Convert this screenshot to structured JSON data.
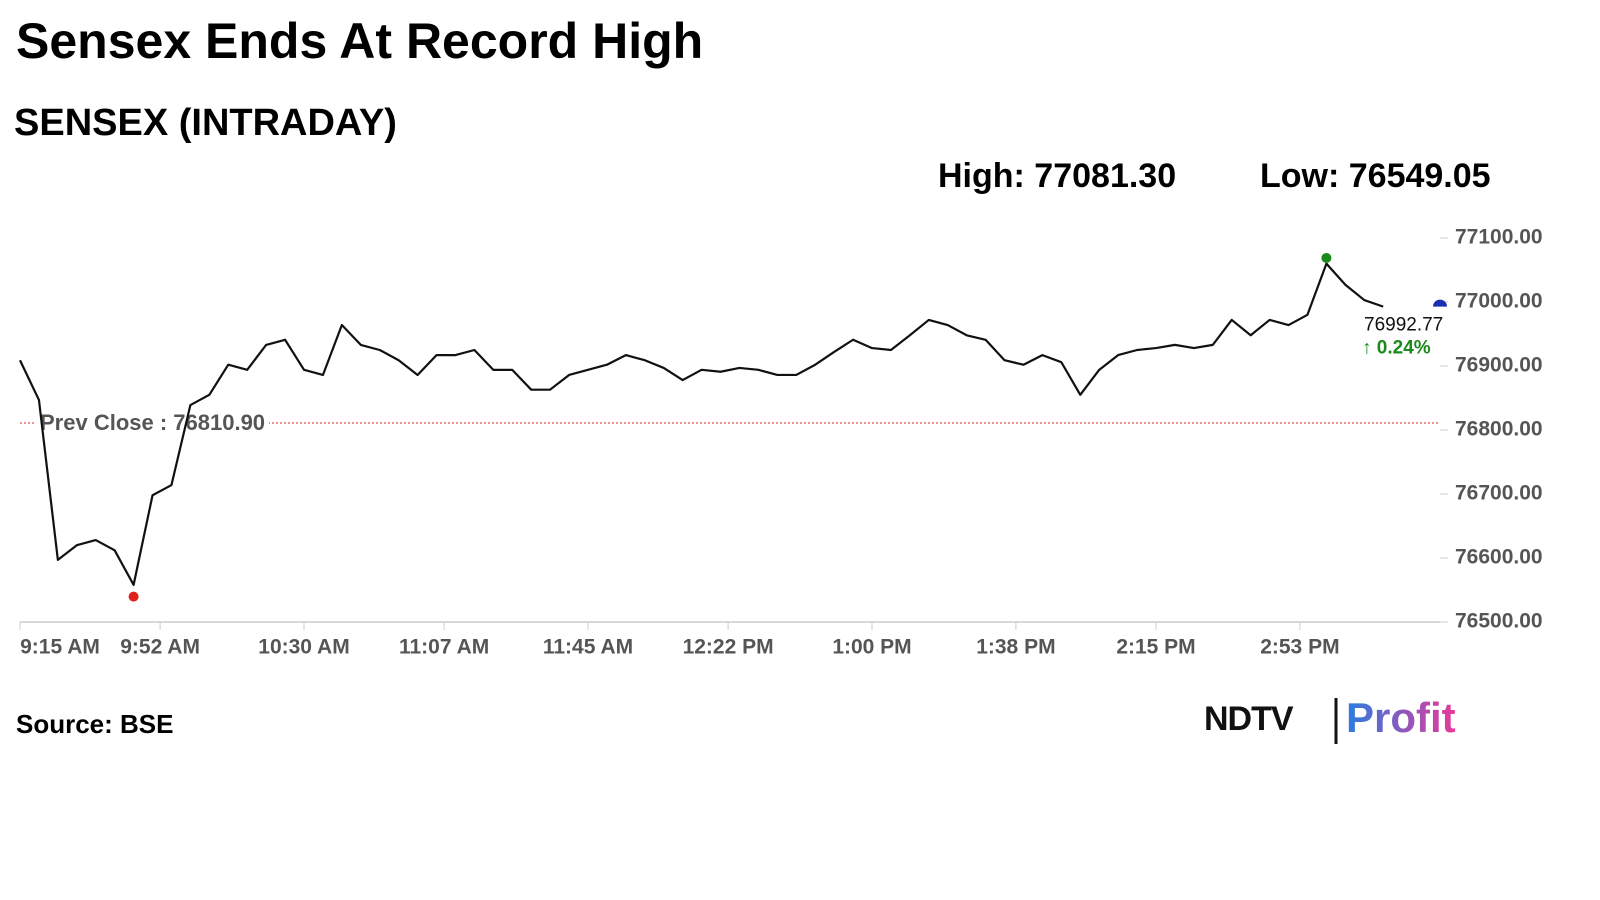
{
  "chart_data": {
    "type": "line",
    "title": "Sensex Ends At Record High",
    "subtitle": "SENSEX (INTRADAY)",
    "high": {
      "value": 77081.3,
      "label": "High: 77081.30"
    },
    "low": {
      "value": 76549.05,
      "label": "Low: 76549.05"
    },
    "prev_close": {
      "value": 76810.9,
      "label": "Prev Close : 76810.90"
    },
    "last": 76992.77,
    "change_label": "↑ 0.24%",
    "color": "#111111",
    "x": [
      "9:15 AM",
      "9:20 AM",
      "9:25 AM",
      "9:30 AM",
      "9:35 AM",
      "9:40 AM",
      "9:45 AM",
      "9:50 AM",
      "9:55 AM",
      "10:00 AM",
      "10:05 AM",
      "10:10 AM",
      "10:15 AM",
      "10:20 AM",
      "10:25 AM",
      "10:30 AM",
      "10:35 AM",
      "10:40 AM",
      "10:45 AM",
      "10:50 AM",
      "10:55 AM",
      "11:00 AM",
      "11:05 AM",
      "11:10 AM",
      "11:15 AM",
      "11:20 AM",
      "11:25 AM",
      "11:30 AM",
      "11:35 AM",
      "11:40 AM",
      "11:45 AM",
      "11:50 AM",
      "11:55 AM",
      "12:00 PM",
      "12:05 PM",
      "12:10 PM",
      "12:15 PM",
      "12:20 PM",
      "12:25 PM",
      "12:30 PM",
      "12:35 PM",
      "12:40 PM",
      "12:45 PM",
      "12:50 PM",
      "12:55 PM",
      "1:00 PM",
      "1:05 PM",
      "1:10 PM",
      "1:15 PM",
      "1:20 PM",
      "1:25 PM",
      "1:30 PM",
      "1:35 PM",
      "1:40 PM",
      "1:45 PM",
      "1:50 PM",
      "1:55 PM",
      "2:00 PM",
      "2:05 PM",
      "2:10 PM",
      "2:15 PM",
      "2:20 PM",
      "2:25 PM",
      "2:30 PM",
      "2:35 PM",
      "2:40 PM",
      "2:45 PM",
      "2:50 PM",
      "2:55 PM",
      "3:00 PM",
      "3:05 PM",
      "3:10 PM",
      "3:15 PM"
    ],
    "values": [
      76909,
      76847,
      76597,
      76620,
      76628,
      76612,
      76558,
      76698,
      76714,
      76839,
      76855,
      76902,
      76894,
      76933,
      76941,
      76894,
      76886,
      76964,
      76933,
      76925,
      76909,
      76886,
      76917,
      76917,
      76925,
      76894,
      76894,
      76863,
      76863,
      76886,
      76894,
      76902,
      76917,
      76909,
      76897,
      76878,
      76894,
      76891,
      76897,
      76894,
      76886,
      76886,
      76902,
      76922,
      76941,
      76928,
      76925,
      76948,
      76972,
      76964,
      76948,
      76941,
      76909,
      76902,
      76917,
      76906,
      76855,
      76894,
      76917,
      76925,
      76928,
      76933,
      76928,
      76933,
      76972,
      76948,
      76972,
      76964,
      76980,
      77060,
      77027,
      77003,
      76992.77
    ],
    "xlim": [
      "9:15 AM",
      "3:30 PM"
    ],
    "xticks": [
      "9:15 AM",
      "9:52 AM",
      "10:30 AM",
      "11:07 AM",
      "11:45 AM",
      "12:22 PM",
      "1:00 PM",
      "1:38 PM",
      "2:15 PM",
      "2:53 PM"
    ],
    "ylim": [
      76500,
      77100
    ],
    "yticks": [
      {
        "value": 76500,
        "label": "76500.00"
      },
      {
        "value": 76600,
        "label": "76600.00"
      },
      {
        "value": 76700,
        "label": "76700.00"
      },
      {
        "value": 76800,
        "label": "76800.00"
      },
      {
        "value": 76900,
        "label": "76900.00"
      },
      {
        "value": 77000,
        "label": "77000.00"
      },
      {
        "value": 77100,
        "label": "77100.00"
      }
    ]
  },
  "footer": {
    "source": "Source: BSE",
    "logo_left": "NDTV",
    "logo_right": "Profit"
  }
}
